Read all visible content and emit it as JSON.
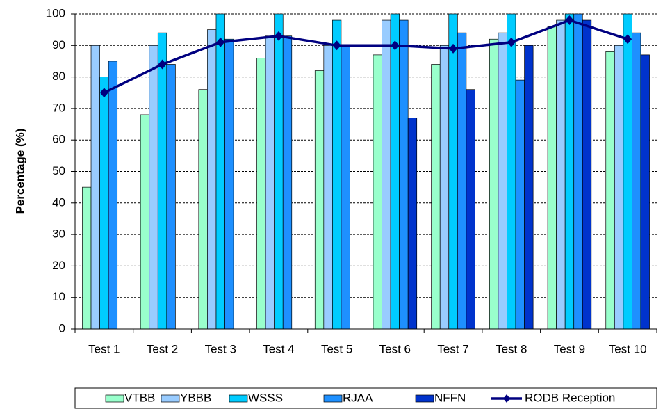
{
  "chart_data": {
    "type": "bar",
    "y_label": "Percentage (%)",
    "categories": [
      "Test 1",
      "Test 2",
      "Test 3",
      "Test 4",
      "Test 5",
      "Test 6",
      "Test 7",
      "Test 8",
      "Test 9",
      "Test 10"
    ],
    "series": [
      {
        "name": "VTBB",
        "color": "#99ffcc",
        "values": [
          45,
          68,
          76,
          86,
          82,
          87,
          84,
          92,
          96,
          88
        ]
      },
      {
        "name": "YBBB",
        "color": "#99ccff",
        "values": [
          90,
          90,
          95,
          93,
          90,
          98,
          90,
          94,
          98,
          90
        ]
      },
      {
        "name": "WSSS",
        "color": "#00ccff",
        "values": [
          80,
          94,
          100,
          100,
          98,
          100,
          100,
          100,
          100,
          100
        ]
      },
      {
        "name": "RJAA",
        "color": "#1e90ff",
        "values": [
          85,
          84,
          92,
          93,
          90,
          98,
          94,
          79,
          100,
          94
        ]
      },
      {
        "name": "NFFN",
        "color": "#0033cc",
        "values": [
          null,
          null,
          null,
          null,
          null,
          67,
          76,
          90,
          98,
          87
        ]
      },
      {
        "name": "RODB Reception",
        "type": "line",
        "color": "#000080",
        "values": [
          75,
          84,
          91,
          93,
          90,
          90,
          89,
          91,
          98,
          92
        ]
      }
    ],
    "ylim": [
      0,
      100
    ],
    "yticks": [
      0,
      10,
      20,
      30,
      40,
      50,
      60,
      70,
      80,
      90,
      100
    ],
    "grid": true
  }
}
